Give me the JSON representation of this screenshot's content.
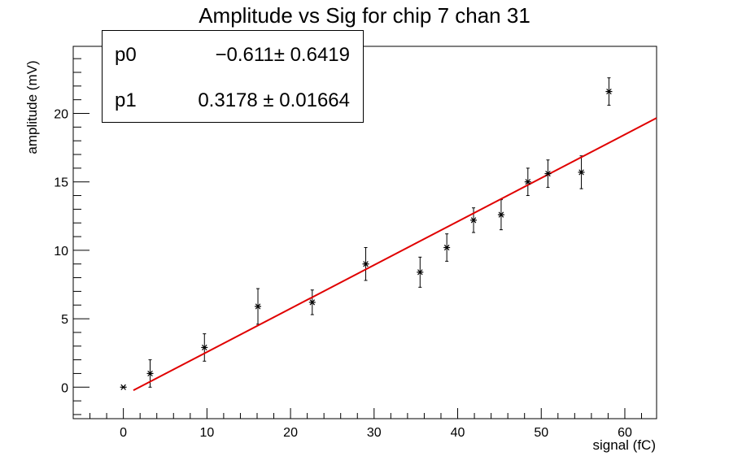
{
  "chart_data": {
    "type": "scatter",
    "title": "Amplitude vs Sig for chip 7 chan 31",
    "xlabel": "signal (fC)",
    "ylabel": "amplitude (mV)",
    "xlim": [
      -6,
      63.8
    ],
    "ylim": [
      -2.3,
      24.9
    ],
    "x_ticks": [
      0,
      10,
      20,
      30,
      40,
      50,
      60
    ],
    "y_ticks": [
      0,
      5,
      10,
      15,
      20
    ],
    "grid": false,
    "legend": "none",
    "series": [
      {
        "marker": "asterisk",
        "color": "#000000",
        "points": [
          {
            "x": 0.0,
            "y": 0.0,
            "err": 0.0
          },
          {
            "x": 3.2,
            "y": 1.0,
            "err": 1.0
          },
          {
            "x": 9.7,
            "y": 2.9,
            "err": 1.0
          },
          {
            "x": 16.1,
            "y": 5.9,
            "err": 1.3
          },
          {
            "x": 22.6,
            "y": 6.2,
            "err": 0.9
          },
          {
            "x": 29.0,
            "y": 9.0,
            "err": 1.2
          },
          {
            "x": 35.5,
            "y": 8.4,
            "err": 1.1
          },
          {
            "x": 38.7,
            "y": 10.2,
            "err": 1.0
          },
          {
            "x": 41.9,
            "y": 12.2,
            "err": 0.9
          },
          {
            "x": 45.2,
            "y": 12.6,
            "err": 1.1
          },
          {
            "x": 48.4,
            "y": 15.0,
            "err": 1.0
          },
          {
            "x": 50.8,
            "y": 15.6,
            "err": 1.0
          },
          {
            "x": 54.8,
            "y": 15.7,
            "err": 1.2
          },
          {
            "x": 58.1,
            "y": 21.6,
            "err": 1.0
          }
        ]
      }
    ],
    "fit": {
      "type": "linear",
      "color": "#e00000",
      "x_range": [
        1.2,
        63.8
      ],
      "p0": -0.611,
      "p1": 0.3178
    },
    "stats": [
      {
        "name": "p0",
        "value": "−0.611± 0.6419"
      },
      {
        "name": "p1",
        "value": "0.3178 ± 0.01664"
      }
    ]
  }
}
